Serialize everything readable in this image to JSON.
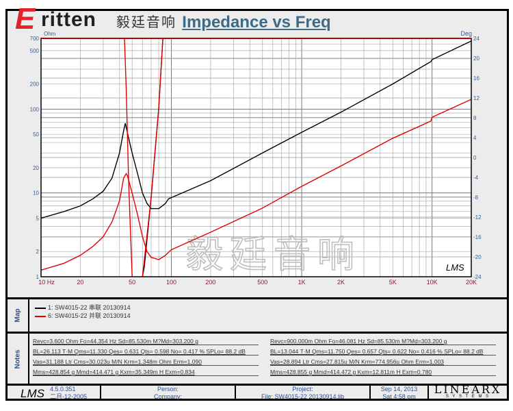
{
  "logo": {
    "letter": "E",
    "word": "ritten",
    "chinese": "毅廷音响"
  },
  "watermark": "毅廷音响",
  "chart_data": {
    "type": "line",
    "title": "Impedance vs Freq",
    "xlabel": "Hz",
    "ylabel": "Ohm",
    "y2label": "Deg",
    "xscale": "log",
    "xlim": [
      10,
      20000
    ],
    "yscale": "log",
    "ylim": [
      1,
      700
    ],
    "y2lim": [
      -24,
      24
    ],
    "xticks": [
      "10 Hz",
      "20",
      "50",
      "100",
      "200",
      "500",
      "1K",
      "2K",
      "5K",
      "10K",
      "20K"
    ],
    "xtick_values": [
      10,
      20,
      50,
      100,
      200,
      500,
      1000,
      2000,
      5000,
      10000,
      20000
    ],
    "yticks": [
      "700",
      "500",
      "200",
      "100",
      "50",
      "20",
      "10",
      "5",
      "2",
      "1"
    ],
    "ytick_values": [
      700,
      500,
      200,
      100,
      50,
      20,
      10,
      5,
      2,
      1
    ],
    "y2ticks": [
      "24",
      "20",
      "16",
      "12",
      "8",
      "4",
      "0",
      "-4",
      "-8",
      "-12",
      "-16",
      "-20",
      "-24"
    ],
    "y2tick_values": [
      24,
      20,
      16,
      12,
      8,
      4,
      0,
      -4,
      -8,
      -12,
      -16,
      -20,
      -24
    ],
    "series": [
      {
        "name": "1: SW4015-22 串联 20130914 impedance",
        "color": "#000000",
        "axis": "y",
        "x": [
          10,
          15,
          20,
          25,
          30,
          35,
          40,
          43,
          44.3,
          46,
          50,
          55,
          60,
          65,
          70,
          80,
          90,
          95,
          100,
          200,
          500,
          1000,
          2000,
          5000,
          9800,
          10000,
          20000
        ],
        "values": [
          5,
          6,
          7,
          8.5,
          10.5,
          15,
          30,
          55,
          68,
          52,
          30,
          17,
          10,
          7.5,
          6.5,
          6.5,
          7.5,
          8.5,
          8.8,
          14,
          30,
          53,
          92,
          200,
          370,
          390,
          650
        ]
      },
      {
        "name": "6: SW4015-22 并联 20130914 impedance",
        "color": "#e00000",
        "axis": "y",
        "x": [
          10,
          15,
          20,
          25,
          30,
          35,
          40,
          43,
          45,
          46,
          50,
          55,
          60,
          65,
          70,
          80,
          90,
          95,
          100,
          200,
          500,
          1000,
          2000,
          5000,
          9800,
          10000,
          20000
        ],
        "values": [
          1.2,
          1.45,
          1.8,
          2.3,
          3,
          4.5,
          8,
          15,
          17,
          16,
          10,
          5.5,
          3,
          2,
          1.7,
          1.6,
          1.8,
          1.95,
          2.1,
          3.4,
          6.6,
          12,
          21,
          45,
          72,
          80,
          131
        ]
      },
      {
        "name": "1: phase",
        "color": "#000000",
        "axis": "y2",
        "x": [
          58,
          62,
          70,
          80,
          86,
          90
        ],
        "values": [
          -26,
          -22,
          -8,
          10,
          24,
          26
        ]
      },
      {
        "name": "6: phase descending",
        "color": "#e00000",
        "axis": "y2",
        "x": [
          42,
          43.7,
          45,
          47,
          50,
          52
        ],
        "values": [
          26,
          24,
          14,
          -5,
          -24,
          -26
        ]
      },
      {
        "name": "6: phase ascending",
        "color": "#e00000",
        "axis": "y2",
        "x": [
          58,
          60,
          70,
          80,
          86,
          90
        ],
        "values": [
          -26,
          -24,
          -8,
          10,
          24,
          26
        ]
      }
    ]
  },
  "map": {
    "label": "Map",
    "items": [
      {
        "text": "1: SW4015-22  串联 20130914",
        "color": "#000000"
      },
      {
        "text": "6: SW4015-22  并联 20130914",
        "color": "#e00000"
      }
    ]
  },
  "notes": {
    "label": "Notes",
    "left": [
      "Revc=3.600 Ohm  Fo=44.354 Hz  Sd=85.530m M?Md=303.200 g",
      "BL=26.113 T·M  Qms=11.330  Qes= 0.631  Qts= 0.598  No= 0.417 %  SPLo= 88.2 dB",
      "Vas=31.188 Ltr  Cms=30.023u M/N  Krm=1.348m Ohm  Erm=1.090",
      "Mms=428.854 g  Mmd=414.471 g  Kxm=35.349m H  Exm=0.834"
    ],
    "right": [
      "Revc=900.000m Ohm  Fo=46.081 Hz  Sd=85.530m M?Md=303.200 g",
      "BL=13.044 T·M  Qms=11.750  Qes= 0.657  Qts= 0.622  No= 0.416 %  SPLo= 88.2 dB",
      "Vas=28.894 Ltr  Cms=27.815u M/N  Krm=774.956u Ohm  Erm=1.003",
      "Mms=428.855 g  Mmd=414.472 g  Kxm=12.811m H  Exm=0.780"
    ]
  },
  "footer": {
    "lms_logo": "LMS",
    "version": "4.5.0.351",
    "date_build": "二月-12-2005",
    "person": "Person:",
    "company": "Company:",
    "project": "Project:",
    "file": "File: SW4015-22  20130914.lib",
    "date": "Sep 14, 2013",
    "time": "Sat  4:58 pm",
    "brand": "LINEARX",
    "brand_sub": "S Y S T E M S"
  },
  "chart_logo": "LMS"
}
